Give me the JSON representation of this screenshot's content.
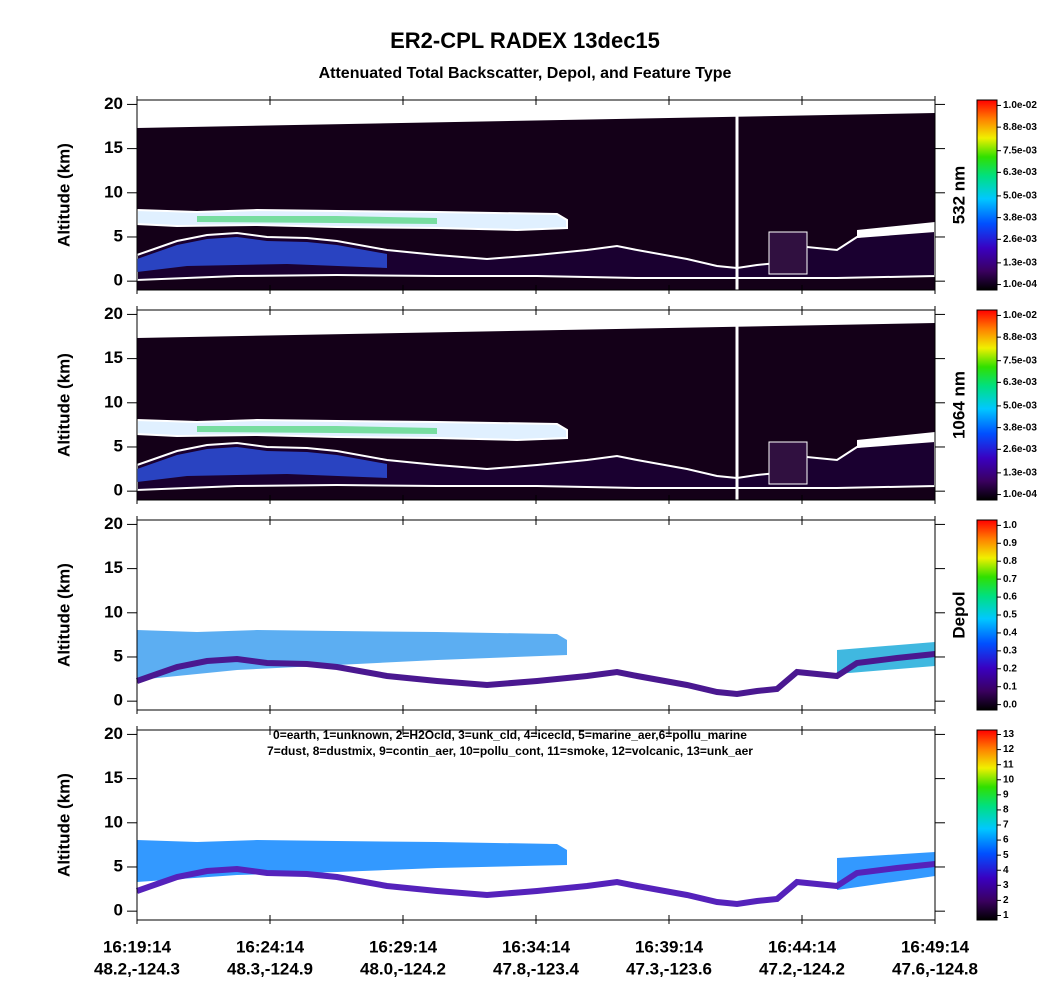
{
  "title": "ER2-CPL RADEX 13dec15",
  "subtitle": "Attenuated Total Backscatter, Depol, and Feature Type",
  "xticks": [
    {
      "time": "16:19:14",
      "location": "48.2,-124.3"
    },
    {
      "time": "16:24:14",
      "location": "48.3,-124.9"
    },
    {
      "time": "16:29:14",
      "location": "48.0,-124.2"
    },
    {
      "time": "16:34:14",
      "location": "47.8,-123.4"
    },
    {
      "time": "16:39:14",
      "location": "47.3,-123.6"
    },
    {
      "time": "16:44:14",
      "location": "47.2,-124.2"
    },
    {
      "time": "16:49:14",
      "location": "47.6,-124.8"
    }
  ],
  "chart_data": [
    {
      "type": "backscatter",
      "ylabel": "Altitude (km)",
      "ylim": [
        -1,
        20.5
      ],
      "yticks": [
        0,
        5,
        10,
        15,
        20
      ],
      "colorbar": {
        "label": "532 nm",
        "lim": [
          -0.0002,
          0.0103
        ],
        "ticks": [
          {
            "value": 0.0001,
            "label": "1.0e-04"
          },
          {
            "value": 0.0013,
            "label": "1.3e-03"
          },
          {
            "value": 0.0026,
            "label": "2.6e-03"
          },
          {
            "value": 0.0038,
            "label": "3.8e-03"
          },
          {
            "value": 0.005,
            "label": "5.0e-03"
          },
          {
            "value": 0.0063,
            "label": "6.3e-03"
          },
          {
            "value": 0.0075,
            "label": "7.5e-03"
          },
          {
            "value": 0.0088,
            "label": "8.8e-03"
          },
          {
            "value": 0.01,
            "label": "1.0e-02"
          }
        ]
      }
    },
    {
      "type": "backscatter",
      "ylabel": "Altitude (km)",
      "ylim": [
        -1,
        20.5
      ],
      "yticks": [
        0,
        5,
        10,
        15,
        20
      ],
      "colorbar": {
        "label": "1064 nm",
        "lim": [
          -0.0002,
          0.0103
        ],
        "ticks": [
          {
            "value": 0.0001,
            "label": "1.0e-04"
          },
          {
            "value": 0.0013,
            "label": "1.3e-03"
          },
          {
            "value": 0.0026,
            "label": "2.6e-03"
          },
          {
            "value": 0.0038,
            "label": "3.8e-03"
          },
          {
            "value": 0.005,
            "label": "5.0e-03"
          },
          {
            "value": 0.0063,
            "label": "6.3e-03"
          },
          {
            "value": 0.0075,
            "label": "7.5e-03"
          },
          {
            "value": 0.0088,
            "label": "8.8e-03"
          },
          {
            "value": 0.01,
            "label": "1.0e-02"
          }
        ]
      }
    },
    {
      "type": "depol",
      "ylabel": "Altitude (km)",
      "ylim": [
        -1,
        20.5
      ],
      "yticks": [
        0,
        5,
        10,
        15,
        20
      ],
      "colorbar": {
        "label": "Depol",
        "lim": [
          -0.03,
          1.03
        ],
        "ticks": [
          {
            "value": 0,
            "label": "0.0"
          },
          0.1,
          0.2,
          0.3,
          0.4,
          0.5,
          0.6,
          0.7,
          0.8,
          0.9,
          {
            "value": 1,
            "label": "1.0"
          }
        ]
      }
    },
    {
      "type": "feature",
      "ylabel": "Altitude (km)",
      "ylim": [
        -1,
        20.5
      ],
      "yticks": [
        0,
        5,
        10,
        15,
        20
      ],
      "legend_text": [
        "0=earth, 1=unknown, 2=H2Ocld, 3=unk_cld, 4=icecld, 5=marine_aer,6=pollu_marine",
        "7=dust, 8=dustmix, 9=contin_aer, 10=pollu_cont, 11=smoke, 12=volcanic, 13=unk_aer"
      ],
      "colorbar": {
        "lim": [
          0.7,
          13.3
        ],
        "ticks": [
          1,
          2,
          3,
          4,
          5,
          6,
          7,
          8,
          9,
          10,
          11,
          12,
          13
        ]
      }
    }
  ]
}
